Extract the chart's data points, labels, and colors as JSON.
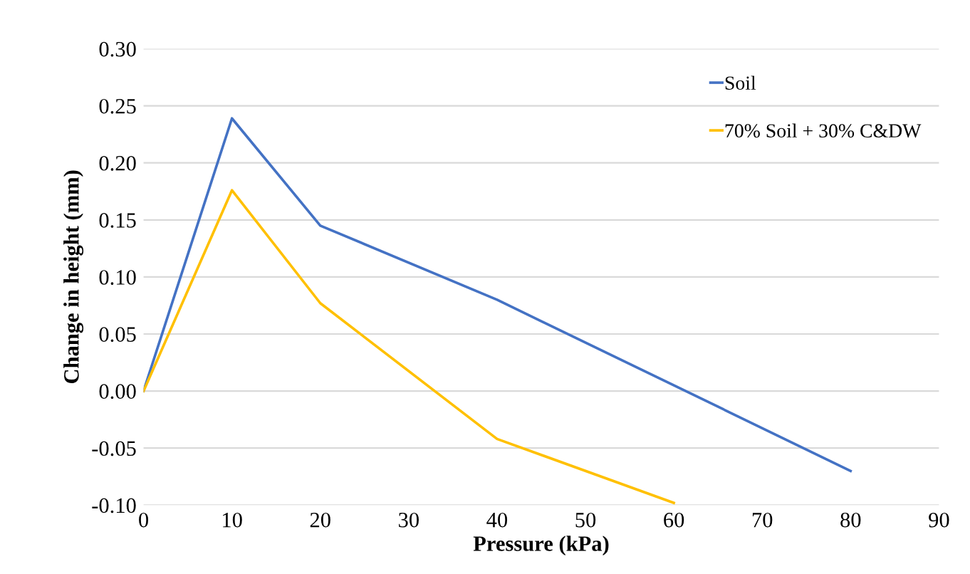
{
  "chart_data": {
    "type": "line",
    "xlabel": "Pressure (kPa)",
    "ylabel": "Change in height (mm)",
    "series": [
      {
        "name": "Soil",
        "color": "#4472c4",
        "x": [
          0,
          10,
          20,
          40,
          80
        ],
        "values": [
          0.0,
          0.239,
          0.145,
          0.08,
          -0.07
        ]
      },
      {
        "name": "70% Soil + 30% C&DW",
        "color": "#ffc000",
        "x": [
          0,
          10,
          20,
          40,
          60
        ],
        "values": [
          0.0,
          0.176,
          0.077,
          -0.042,
          -0.098
        ]
      }
    ],
    "xlim": [
      0,
      90
    ],
    "xticks": [
      0,
      10,
      20,
      30,
      40,
      50,
      60,
      70,
      80,
      90
    ],
    "ylim": [
      -0.1,
      0.3
    ],
    "yticks": [
      {
        "value": -0.1,
        "label": "-0.10"
      },
      {
        "value": -0.05,
        "label": "-0.05"
      },
      {
        "value": 0,
        "label": "0.00"
      },
      {
        "value": 0.05,
        "label": "0.05"
      },
      {
        "value": 0.1,
        "label": "0.10"
      },
      {
        "value": 0.15,
        "label": "0.15"
      },
      {
        "value": 0.2,
        "label": "0.20"
      },
      {
        "value": 0.25,
        "label": "0.25"
      },
      {
        "value": 0.3,
        "label": "0.30"
      }
    ],
    "grid": "y",
    "legend": "right",
    "marker": "none",
    "line_style": "solid"
  }
}
